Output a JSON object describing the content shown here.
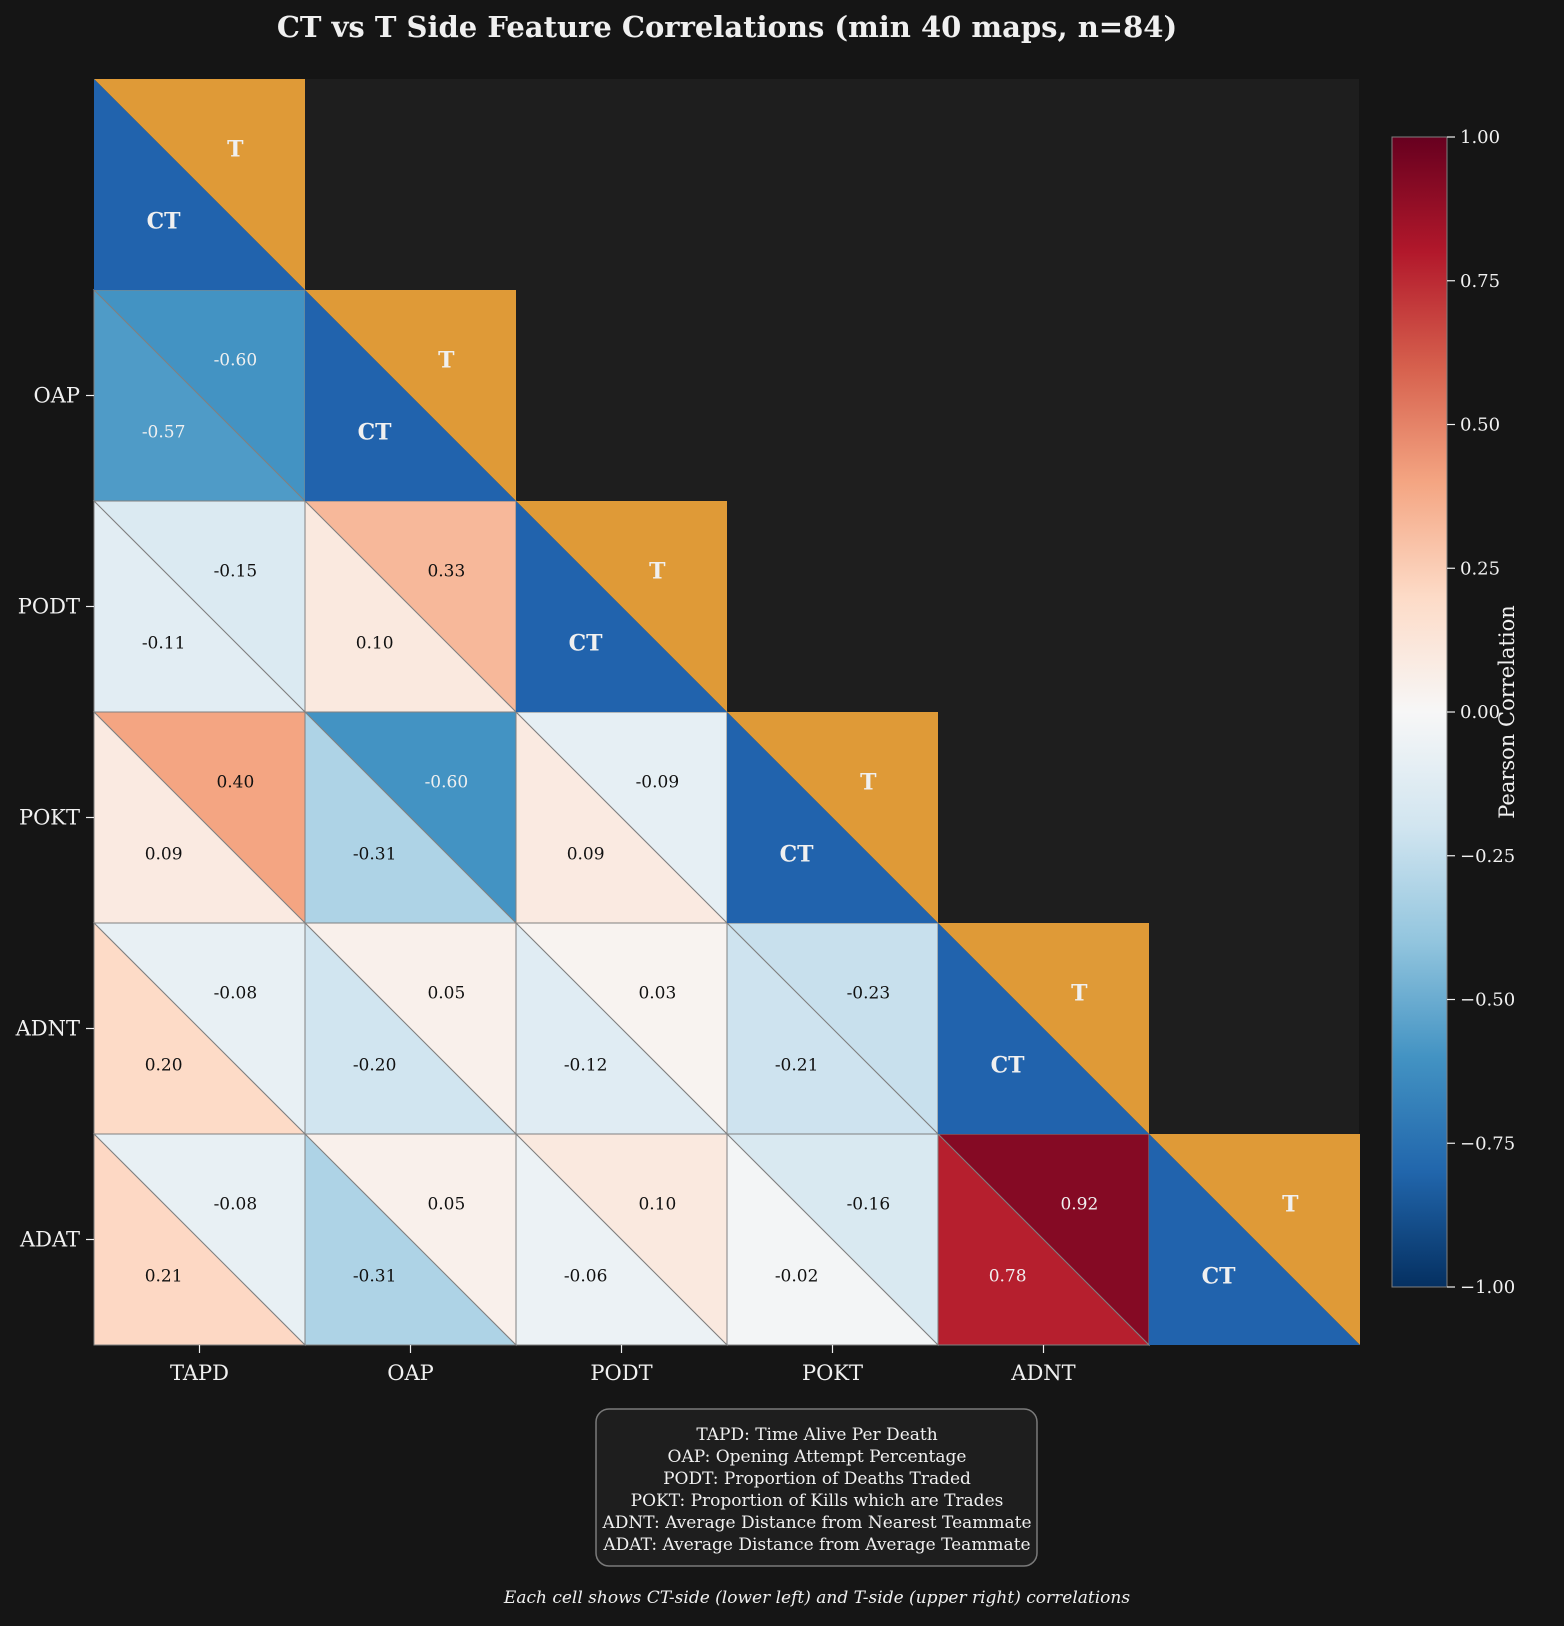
{
  "chart_data": {
    "type": "heatmap",
    "title": "CT vs T Side Feature Correlations (min 40 maps, n=84)",
    "features": [
      "TAPD",
      "OAP",
      "PODT",
      "POKT",
      "ADNT",
      "ADAT"
    ],
    "y_tick_labels": [
      "OAP",
      "PODT",
      "POKT",
      "ADNT",
      "ADAT"
    ],
    "x_tick_labels": [
      "TAPD",
      "OAP",
      "PODT",
      "POKT",
      "ADNT"
    ],
    "diagonal_labels": {
      "ct": "CT",
      "t": "T"
    },
    "cells": [
      {
        "row": "OAP",
        "col": "TAPD",
        "ct": -0.57,
        "t": -0.6,
        "ct_label": "-0.57",
        "t_label": "-0.60"
      },
      {
        "row": "PODT",
        "col": "TAPD",
        "ct": -0.11,
        "t": -0.15,
        "ct_label": "-0.11",
        "t_label": "-0.15"
      },
      {
        "row": "PODT",
        "col": "OAP",
        "ct": 0.1,
        "t": 0.33,
        "ct_label": "0.10",
        "t_label": "0.33"
      },
      {
        "row": "POKT",
        "col": "TAPD",
        "ct": 0.09,
        "t": 0.4,
        "ct_label": "0.09",
        "t_label": "0.40"
      },
      {
        "row": "POKT",
        "col": "OAP",
        "ct": -0.31,
        "t": -0.6,
        "ct_label": "-0.31",
        "t_label": "-0.60"
      },
      {
        "row": "POKT",
        "col": "PODT",
        "ct": 0.09,
        "t": -0.09,
        "ct_label": "0.09",
        "t_label": "-0.09"
      },
      {
        "row": "ADNT",
        "col": "TAPD",
        "ct": 0.2,
        "t": -0.08,
        "ct_label": "0.20",
        "t_label": "-0.08"
      },
      {
        "row": "ADNT",
        "col": "OAP",
        "ct": -0.2,
        "t": 0.05,
        "ct_label": "-0.20",
        "t_label": "0.05"
      },
      {
        "row": "ADNT",
        "col": "PODT",
        "ct": -0.12,
        "t": 0.03,
        "ct_label": "-0.12",
        "t_label": "0.03"
      },
      {
        "row": "ADNT",
        "col": "POKT",
        "ct": -0.21,
        "t": -0.23,
        "ct_label": "-0.21",
        "t_label": "-0.23"
      },
      {
        "row": "ADAT",
        "col": "TAPD",
        "ct": 0.21,
        "t": -0.08,
        "ct_label": "0.21",
        "t_label": "-0.08"
      },
      {
        "row": "ADAT",
        "col": "OAP",
        "ct": -0.31,
        "t": 0.05,
        "ct_label": "-0.31",
        "t_label": "0.05"
      },
      {
        "row": "ADAT",
        "col": "PODT",
        "ct": -0.06,
        "t": 0.1,
        "ct_label": "-0.06",
        "t_label": "0.10"
      },
      {
        "row": "ADAT",
        "col": "POKT",
        "ct": -0.02,
        "t": -0.16,
        "ct_label": "-0.02",
        "t_label": "-0.16"
      },
      {
        "row": "ADAT",
        "col": "ADNT",
        "ct": 0.78,
        "t": 0.92,
        "ct_label": "0.78",
        "t_label": "0.92"
      }
    ],
    "colorbar": {
      "label": "Pearson Correlation",
      "colormap": "RdBu_r",
      "vmin": -1.0,
      "vmax": 1.0,
      "ticks": [
        1.0,
        0.75,
        0.5,
        0.25,
        0.0,
        -0.25,
        -0.5,
        -0.75,
        -1.0
      ],
      "tick_labels": [
        "1.00",
        "0.75",
        "0.50",
        "0.25",
        "0.00",
        "−0.25",
        "−0.50",
        "−0.75",
        "−1.00"
      ]
    },
    "legend_lines": [
      "TAPD: Time Alive Per Death",
      "OAP: Opening Attempt Percentage",
      "PODT: Proportion of Deaths Traded",
      "POKT: Proportion of Kills which are Trades",
      "ADNT: Average Distance from Nearest Teammate",
      "ADAT: Average Distance from Average Teammate"
    ],
    "footnote": "Each cell shows CT-side (lower left) and T-side (upper right) correlations"
  },
  "colors": {
    "background": "#151515",
    "axes_background": "#1e1e1e",
    "ct_diagonal": "#2163ad",
    "t_diagonal": "#df9a37",
    "text": "#f0f0f0",
    "cell_edge": "#808080"
  }
}
